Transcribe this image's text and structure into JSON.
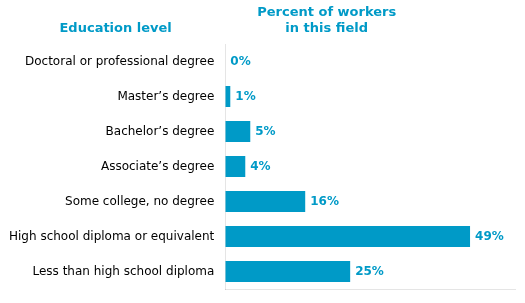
{
  "chart_data": {
    "type": "bar",
    "orientation": "horizontal",
    "ylabel": "Education level",
    "xlabel": "Percent of workers\nin this field",
    "categories": [
      "Doctoral or professional degree",
      "Master’s degree",
      "Bachelor’s degree",
      "Associate’s degree",
      "Some college, no degree",
      "High school diploma or equivalent",
      "Less than high school diploma"
    ],
    "values": [
      0,
      1,
      5,
      4,
      16,
      49,
      25
    ],
    "value_labels": [
      "0%",
      "1%",
      "5%",
      "4%",
      "16%",
      "49%",
      "25%"
    ],
    "data_labels": true,
    "color": "#009ac7",
    "xlim": [
      0,
      58
    ],
    "tick_labels": "y",
    "grid": false
  }
}
